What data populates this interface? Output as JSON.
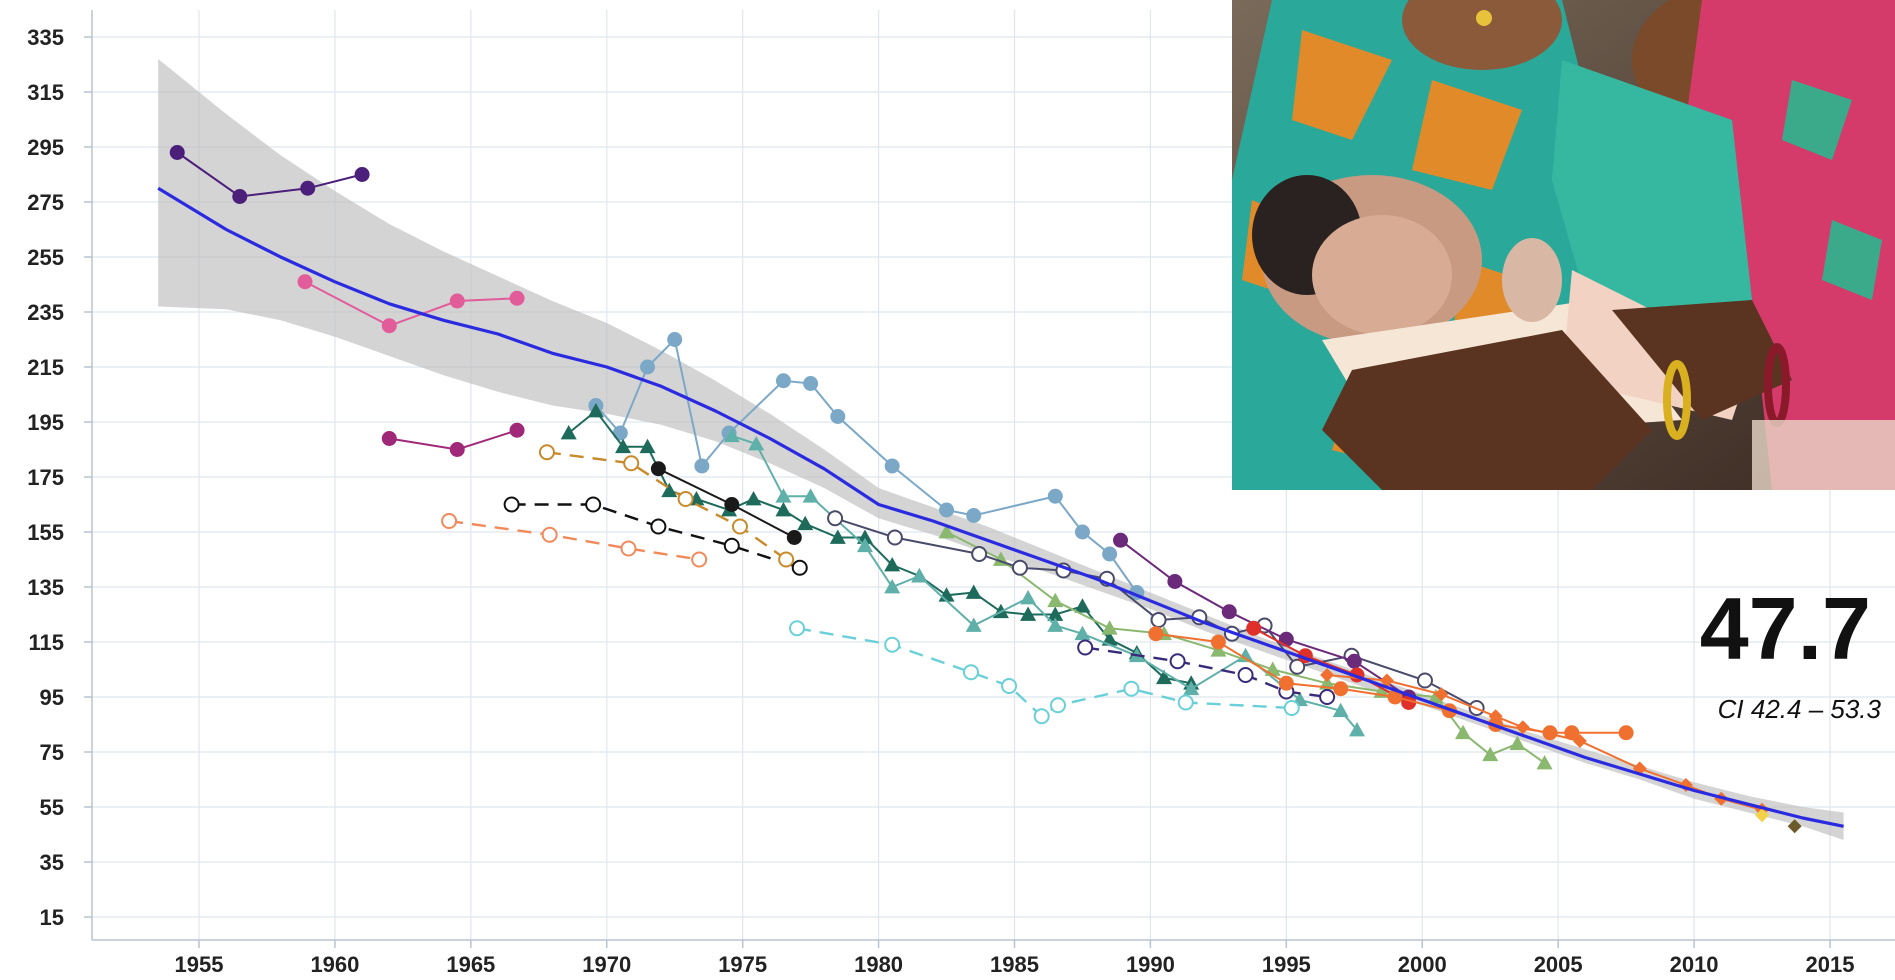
{
  "chart_data": {
    "type": "line",
    "title": "",
    "xlabel": "",
    "ylabel": "",
    "xlim": [
      1952,
      2017
    ],
    "ylim": [
      10,
      345
    ],
    "x_ticks": [
      1955,
      1960,
      1965,
      1970,
      1975,
      1980,
      1985,
      1990,
      1995,
      2000,
      2005,
      2010,
      2015
    ],
    "y_ticks": [
      15,
      35,
      55,
      75,
      95,
      115,
      135,
      155,
      175,
      195,
      215,
      235,
      255,
      275,
      295,
      315,
      335
    ],
    "grid": true,
    "legend": "none",
    "trend": {
      "color": "#2a2ae0",
      "points": [
        [
          1953.5,
          280
        ],
        [
          1956,
          265
        ],
        [
          1958,
          255
        ],
        [
          1960,
          246
        ],
        [
          1962,
          238
        ],
        [
          1964,
          232
        ],
        [
          1966,
          227
        ],
        [
          1968,
          220
        ],
        [
          1970,
          215
        ],
        [
          1972,
          208
        ],
        [
          1974,
          199
        ],
        [
          1976,
          189
        ],
        [
          1978,
          178
        ],
        [
          1980,
          165
        ],
        [
          1982,
          159
        ],
        [
          1984,
          152
        ],
        [
          1986,
          145
        ],
        [
          1988,
          138
        ],
        [
          1990,
          130
        ],
        [
          1992,
          122
        ],
        [
          1994,
          115
        ],
        [
          1996,
          108
        ],
        [
          1998,
          101
        ],
        [
          2000,
          94
        ],
        [
          2002,
          87
        ],
        [
          2004,
          80
        ],
        [
          2006,
          73
        ],
        [
          2008,
          67
        ],
        [
          2010,
          61
        ],
        [
          2012,
          56
        ],
        [
          2014,
          51
        ],
        [
          2015.5,
          48
        ]
      ],
      "ci_upper": [
        [
          1953.5,
          327
        ],
        [
          1956,
          307
        ],
        [
          1958,
          292
        ],
        [
          1960,
          279
        ],
        [
          1962,
          267
        ],
        [
          1964,
          257
        ],
        [
          1966,
          248
        ],
        [
          1968,
          239
        ],
        [
          1970,
          231
        ],
        [
          1972,
          221
        ],
        [
          1974,
          210
        ],
        [
          1976,
          198
        ],
        [
          1978,
          185
        ],
        [
          1980,
          171
        ],
        [
          1982,
          164
        ],
        [
          1984,
          157
        ],
        [
          1986,
          149
        ],
        [
          1988,
          141
        ],
        [
          1990,
          133
        ],
        [
          1992,
          125
        ],
        [
          1994,
          117
        ],
        [
          1996,
          110
        ],
        [
          1998,
          103
        ],
        [
          2000,
          96
        ],
        [
          2002,
          89
        ],
        [
          2004,
          82
        ],
        [
          2006,
          76
        ],
        [
          2008,
          70
        ],
        [
          2010,
          64
        ],
        [
          2012,
          59
        ],
        [
          2014,
          55
        ],
        [
          2015.5,
          53
        ]
      ],
      "ci_lower": [
        [
          1953.5,
          237
        ],
        [
          1956,
          236
        ],
        [
          1958,
          232
        ],
        [
          1960,
          226
        ],
        [
          1962,
          219
        ],
        [
          1964,
          212
        ],
        [
          1966,
          206
        ],
        [
          1968,
          201
        ],
        [
          1970,
          198
        ],
        [
          1972,
          194
        ],
        [
          1974,
          188
        ],
        [
          1976,
          180
        ],
        [
          1978,
          171
        ],
        [
          1980,
          160
        ],
        [
          1982,
          154
        ],
        [
          1984,
          147
        ],
        [
          1986,
          141
        ],
        [
          1988,
          134
        ],
        [
          1990,
          127
        ],
        [
          1992,
          119
        ],
        [
          1994,
          112
        ],
        [
          1996,
          105
        ],
        [
          1998,
          98
        ],
        [
          2000,
          92
        ],
        [
          2002,
          85
        ],
        [
          2004,
          78
        ],
        [
          2006,
          71
        ],
        [
          2008,
          65
        ],
        [
          2010,
          58
        ],
        [
          2012,
          53
        ],
        [
          2014,
          48
        ],
        [
          2015.5,
          43
        ]
      ]
    },
    "series": [
      {
        "color": "#4b1f7a",
        "marker": "circle",
        "dash": false,
        "points": [
          [
            1954.2,
            293
          ],
          [
            1956.5,
            277
          ],
          [
            1959,
            280
          ],
          [
            1961,
            285
          ]
        ]
      },
      {
        "color": "#e25c9a",
        "marker": "circle",
        "dash": false,
        "points": [
          [
            1958.9,
            246
          ],
          [
            1962,
            230
          ],
          [
            1964.5,
            239
          ],
          [
            1966.7,
            240
          ]
        ]
      },
      {
        "color": "#a02878",
        "marker": "circle",
        "dash": false,
        "points": [
          [
            1962,
            189
          ],
          [
            1964.5,
            185
          ],
          [
            1966.7,
            192
          ]
        ]
      },
      {
        "color": "#7ca8c8",
        "marker": "circle",
        "dash": false,
        "points": [
          [
            1969.6,
            201
          ],
          [
            1970.5,
            191
          ],
          [
            1971.5,
            215
          ],
          [
            1972.5,
            225
          ],
          [
            1973.5,
            179
          ],
          [
            1974.5,
            191
          ],
          [
            1976.5,
            210
          ],
          [
            1977.5,
            209
          ],
          [
            1978.5,
            197
          ],
          [
            1980.5,
            179
          ],
          [
            1982.5,
            163
          ],
          [
            1983.5,
            161
          ],
          [
            1986.5,
            168
          ],
          [
            1987.5,
            155
          ],
          [
            1988.5,
            147
          ],
          [
            1989.5,
            133
          ]
        ]
      },
      {
        "color": "#1e6b5c",
        "marker": "triangle",
        "dash": false,
        "points": [
          [
            1968.6,
            191
          ],
          [
            1969.6,
            199
          ],
          [
            1970.6,
            186
          ],
          [
            1971.5,
            186
          ],
          [
            1972.3,
            170
          ],
          [
            1973.3,
            167
          ],
          [
            1974.5,
            163
          ],
          [
            1975.4,
            167
          ],
          [
            1976.5,
            163
          ],
          [
            1977.3,
            158
          ],
          [
            1978.5,
            153
          ],
          [
            1979.5,
            153
          ],
          [
            1980.5,
            143
          ],
          [
            1981.5,
            139
          ],
          [
            1982.5,
            132
          ],
          [
            1983.5,
            133
          ],
          [
            1984.5,
            126
          ],
          [
            1985.5,
            125
          ],
          [
            1986.5,
            125
          ],
          [
            1987.5,
            128
          ],
          [
            1988.5,
            116
          ],
          [
            1989.5,
            111
          ],
          [
            1990.5,
            102
          ],
          [
            1991.5,
            100
          ]
        ]
      },
      {
        "color": "#5fb0a8",
        "marker": "triangle",
        "dash": false,
        "points": [
          [
            1974.6,
            190
          ],
          [
            1975.5,
            187
          ],
          [
            1976.5,
            168
          ],
          [
            1977.5,
            168
          ],
          [
            1979.5,
            150
          ],
          [
            1980.5,
            135
          ],
          [
            1981.5,
            139
          ],
          [
            1983.5,
            121
          ],
          [
            1985.5,
            131
          ],
          [
            1986.5,
            121
          ],
          [
            1987.5,
            118
          ],
          [
            1989.5,
            110
          ],
          [
            1991.5,
            98
          ],
          [
            1993.5,
            110
          ],
          [
            1995.5,
            94
          ],
          [
            1997,
            90
          ],
          [
            1997.6,
            83
          ]
        ]
      },
      {
        "color": "#8ab86e",
        "marker": "triangle",
        "dash": false,
        "points": [
          [
            1982.5,
            155
          ],
          [
            1984.5,
            145
          ],
          [
            1986.5,
            130
          ],
          [
            1988.5,
            120
          ],
          [
            1990.5,
            118
          ],
          [
            1992.5,
            112
          ],
          [
            1994.5,
            105
          ],
          [
            1996.5,
            100
          ],
          [
            1998.5,
            97
          ],
          [
            2000.5,
            95
          ],
          [
            2001.5,
            82
          ],
          [
            2002.5,
            74
          ],
          [
            2003.5,
            78
          ],
          [
            2004.5,
            71
          ]
        ]
      },
      {
        "color": "#1a1a1a",
        "marker": "circle",
        "dash": false,
        "points": [
          [
            1971.9,
            178
          ],
          [
            1974.6,
            165
          ],
          [
            1976.9,
            153
          ]
        ]
      },
      {
        "color": "#111111",
        "marker": "open",
        "dash": true,
        "points": [
          [
            1966.5,
            165
          ],
          [
            1969.5,
            165
          ],
          [
            1971.9,
            157
          ],
          [
            1974.6,
            150
          ],
          [
            1977.1,
            142
          ]
        ]
      },
      {
        "color": "#c88a2a",
        "marker": "open",
        "dash": true,
        "points": [
          [
            1967.8,
            184
          ],
          [
            1970.9,
            180
          ],
          [
            1972.9,
            167
          ],
          [
            1974.9,
            157
          ],
          [
            1976.6,
            145
          ]
        ]
      },
      {
        "color": "#f08a5a",
        "marker": "open",
        "dash": true,
        "points": [
          [
            1964.2,
            159
          ],
          [
            1967.9,
            154
          ],
          [
            1970.8,
            149
          ],
          [
            1973.4,
            145
          ]
        ]
      },
      {
        "color": "#6ad0d8",
        "marker": "open",
        "dash": true,
        "points": [
          [
            1977,
            120
          ],
          [
            1980.5,
            114
          ],
          [
            1983.4,
            104
          ],
          [
            1984.8,
            99
          ],
          [
            1986,
            88
          ],
          [
            1986.6,
            92
          ],
          [
            1989.3,
            98
          ],
          [
            1991.3,
            93
          ],
          [
            1995.2,
            91
          ]
        ]
      },
      {
        "color": "#3a2a7a",
        "marker": "open",
        "dash": true,
        "points": [
          [
            1987.6,
            113
          ],
          [
            1991,
            108
          ],
          [
            1993.5,
            103
          ],
          [
            1995,
            97
          ],
          [
            1996.5,
            95
          ]
        ]
      },
      {
        "color": "#4a4a6a",
        "marker": "open",
        "dash": false,
        "points": [
          [
            1978.4,
            160
          ],
          [
            1980.6,
            153
          ],
          [
            1983.7,
            147
          ],
          [
            1985.2,
            142
          ],
          [
            1986.8,
            141
          ],
          [
            1988.4,
            138
          ],
          [
            1990.3,
            123
          ],
          [
            1991.8,
            124
          ],
          [
            1993,
            118
          ],
          [
            1994.2,
            121
          ],
          [
            1995.4,
            106
          ],
          [
            1997.4,
            110
          ],
          [
            2000.1,
            101
          ],
          [
            2002,
            91
          ]
        ]
      },
      {
        "color": "#6b2a7a",
        "marker": "circle",
        "dash": false,
        "points": [
          [
            1988.9,
            152
          ],
          [
            1990.9,
            137
          ],
          [
            1992.9,
            126
          ],
          [
            1995,
            116
          ],
          [
            1997.5,
            108
          ],
          [
            1999.5,
            95
          ]
        ]
      },
      {
        "color": "#e0302a",
        "marker": "circle",
        "dash": false,
        "points": [
          [
            1993.8,
            120
          ],
          [
            1995.7,
            110
          ],
          [
            1997.6,
            103
          ],
          [
            1999.5,
            93
          ]
        ]
      },
      {
        "color": "#f07030",
        "marker": "circle",
        "dash": false,
        "points": [
          [
            1990.2,
            118
          ],
          [
            1992.5,
            115
          ],
          [
            1995,
            100
          ],
          [
            1997,
            98
          ],
          [
            1999,
            95
          ],
          [
            2001,
            90
          ],
          [
            2002.7,
            85
          ],
          [
            2004.7,
            82
          ],
          [
            2005.5,
            82
          ],
          [
            2007.5,
            82
          ]
        ]
      },
      {
        "color": "#f07030",
        "marker": "diamond",
        "dash": false,
        "points": [
          [
            1996.5,
            103
          ],
          [
            1998.7,
            101
          ],
          [
            2000.7,
            96
          ],
          [
            2002.7,
            88
          ],
          [
            2003.7,
            84
          ],
          [
            2005.8,
            79
          ],
          [
            2008,
            69
          ],
          [
            2009.7,
            63
          ],
          [
            2011,
            58
          ],
          [
            2012.5,
            54
          ]
        ]
      },
      {
        "color": "#f2d24a",
        "marker": "diamond",
        "dash": false,
        "points": [
          [
            2012.5,
            52
          ]
        ]
      },
      {
        "color": "#6b5a2a",
        "marker": "diamond",
        "dash": false,
        "points": [
          [
            2013.7,
            48
          ]
        ]
      }
    ],
    "annotations": [
      {
        "text": "47.7"
      },
      {
        "text": "CI 42.4 – 53.3"
      }
    ]
  },
  "annotation_value": "47.7",
  "annotation_ci": "CI 42.4 – 53.3",
  "photo_icon": "mother-and-newborn-photo"
}
